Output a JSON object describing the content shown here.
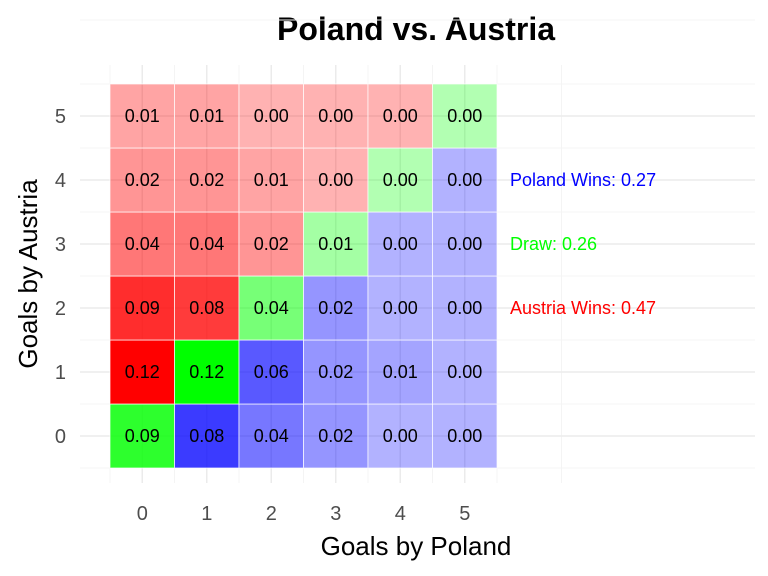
{
  "chart_data": {
    "type": "heatmap",
    "title": "Poland vs. Austria",
    "xlabel": "Goals by Poland",
    "ylabel": "Goals by Austria",
    "x_categories": [
      "0",
      "1",
      "2",
      "3",
      "4",
      "5"
    ],
    "y_categories": [
      "0",
      "1",
      "2",
      "3",
      "4",
      "5"
    ],
    "values": [
      [
        "0.09",
        "0.08",
        "0.04",
        "0.02",
        "0.00",
        "0.00"
      ],
      [
        "0.12",
        "0.12",
        "0.06",
        "0.02",
        "0.01",
        "0.00"
      ],
      [
        "0.09",
        "0.08",
        "0.04",
        "0.02",
        "0.00",
        "0.00"
      ],
      [
        "0.04",
        "0.04",
        "0.02",
        "0.01",
        "0.00",
        "0.00"
      ],
      [
        "0.02",
        "0.02",
        "0.01",
        "0.00",
        "0.00",
        "0.00"
      ],
      [
        "0.01",
        "0.01",
        "0.00",
        "0.00",
        "0.00",
        "0.00"
      ]
    ],
    "value_axis_note": "rows indexed by Goals by Austria (0..5), columns by Goals by Poland (0..5)",
    "outcome_colors": {
      "poland": "#0000ff",
      "draw": "#00ff00",
      "austria": "#ff0000"
    },
    "summary": [
      {
        "label": "Poland Wins: 0.27",
        "color": "#0000ff"
      },
      {
        "label": "Draw: 0.26",
        "color": "#00ff00"
      },
      {
        "label": "Austria Wins: 0.47",
        "color": "#ff0000"
      }
    ],
    "grid": true
  }
}
